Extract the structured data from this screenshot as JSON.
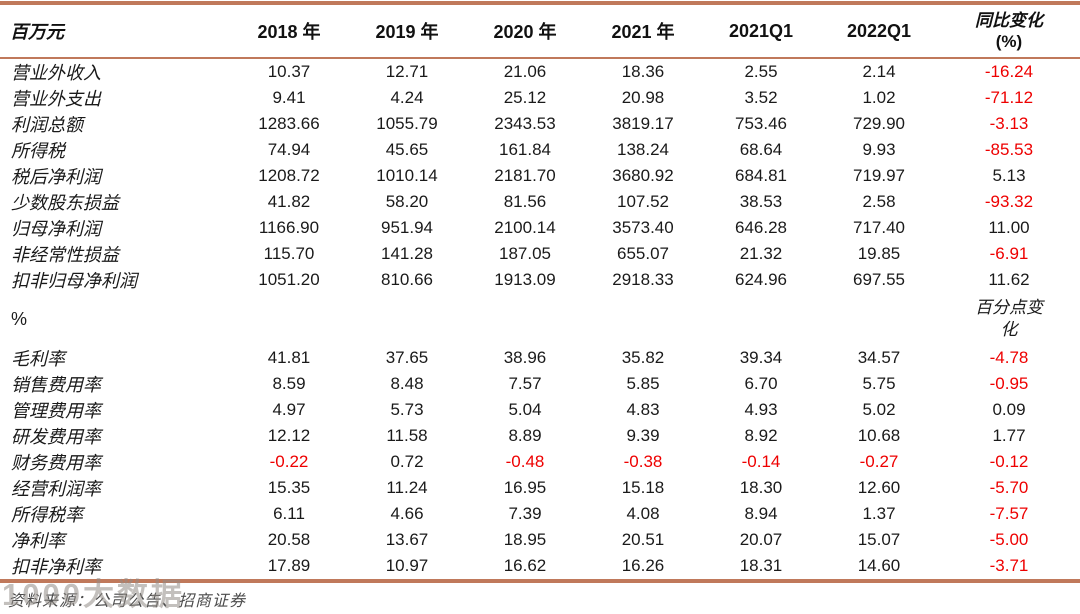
{
  "colors": {
    "accent_rule": "#C0795B",
    "negative_value": "#EE0000",
    "text": "#1a1a1a",
    "source_text": "#4b4b4b"
  },
  "chart_data": {
    "type": "table",
    "unit_header": "百万元",
    "columns": [
      "2018 年",
      "2019 年",
      "2020 年",
      "2021 年",
      "2021Q1",
      "2022Q1"
    ],
    "yoy_column": {
      "line1": "同比变化",
      "line2": "(%)"
    },
    "block1_rows": [
      {
        "label": "营业外收入",
        "values": [
          "10.37",
          "12.71",
          "21.06",
          "18.36",
          "2.55",
          "2.14"
        ],
        "yoy": "-16.24"
      },
      {
        "label": "营业外支出",
        "values": [
          "9.41",
          "4.24",
          "25.12",
          "20.98",
          "3.52",
          "1.02"
        ],
        "yoy": "-71.12"
      },
      {
        "label": "利润总额",
        "values": [
          "1283.66",
          "1055.79",
          "2343.53",
          "3819.17",
          "753.46",
          "729.90"
        ],
        "yoy": "-3.13"
      },
      {
        "label": "所得税",
        "values": [
          "74.94",
          "45.65",
          "161.84",
          "138.24",
          "68.64",
          "9.93"
        ],
        "yoy": "-85.53"
      },
      {
        "label": "税后净利润",
        "values": [
          "1208.72",
          "1010.14",
          "2181.70",
          "3680.92",
          "684.81",
          "719.97"
        ],
        "yoy": "5.13"
      },
      {
        "label": "少数股东损益",
        "values": [
          "41.82",
          "58.20",
          "81.56",
          "107.52",
          "38.53",
          "2.58"
        ],
        "yoy": "-93.32"
      },
      {
        "label": "归母净利润",
        "values": [
          "1166.90",
          "951.94",
          "2100.14",
          "3573.40",
          "646.28",
          "717.40"
        ],
        "yoy": "11.00"
      },
      {
        "label": "非经常性损益",
        "values": [
          "115.70",
          "141.28",
          "187.05",
          "655.07",
          "21.32",
          "19.85"
        ],
        "yoy": "-6.91"
      },
      {
        "label": "扣非归母净利润",
        "values": [
          "1051.20",
          "810.66",
          "1913.09",
          "2918.33",
          "624.96",
          "697.55"
        ],
        "yoy": "11.62"
      }
    ],
    "section_divider": {
      "label": "%",
      "yoy_unit": "百分点变化"
    },
    "block2_rows": [
      {
        "label": "毛利率",
        "values": [
          "41.81",
          "37.65",
          "38.96",
          "35.82",
          "39.34",
          "34.57"
        ],
        "yoy": "-4.78"
      },
      {
        "label": "销售费用率",
        "values": [
          "8.59",
          "8.48",
          "7.57",
          "5.85",
          "6.70",
          "5.75"
        ],
        "yoy": "-0.95"
      },
      {
        "label": "管理费用率",
        "values": [
          "4.97",
          "5.73",
          "5.04",
          "4.83",
          "4.93",
          "5.02"
        ],
        "yoy": "0.09"
      },
      {
        "label": "研发费用率",
        "values": [
          "12.12",
          "11.58",
          "8.89",
          "9.39",
          "8.92",
          "10.68"
        ],
        "yoy": "1.77"
      },
      {
        "label": "财务费用率",
        "values": [
          "-0.22",
          "0.72",
          "-0.48",
          "-0.38",
          "-0.14",
          "-0.27"
        ],
        "yoy": "-0.12"
      },
      {
        "label": "经营利润率",
        "values": [
          "15.35",
          "11.24",
          "16.95",
          "15.18",
          "18.30",
          "12.60"
        ],
        "yoy": "-5.70"
      },
      {
        "label": "所得税率",
        "values": [
          "6.11",
          "4.66",
          "7.39",
          "4.08",
          "8.94",
          "1.37"
        ],
        "yoy": "-7.57"
      },
      {
        "label": "净利率",
        "values": [
          "20.58",
          "13.67",
          "18.95",
          "20.51",
          "20.07",
          "15.07"
        ],
        "yoy": "-5.00"
      },
      {
        "label": "扣非净利率",
        "values": [
          "17.89",
          "10.97",
          "16.62",
          "16.26",
          "18.31",
          "14.60"
        ],
        "yoy": "-3.71"
      }
    ]
  },
  "footer": {
    "source": "资料来源：公司公告、招商证券"
  },
  "watermark": {
    "text": "1000大数据"
  }
}
